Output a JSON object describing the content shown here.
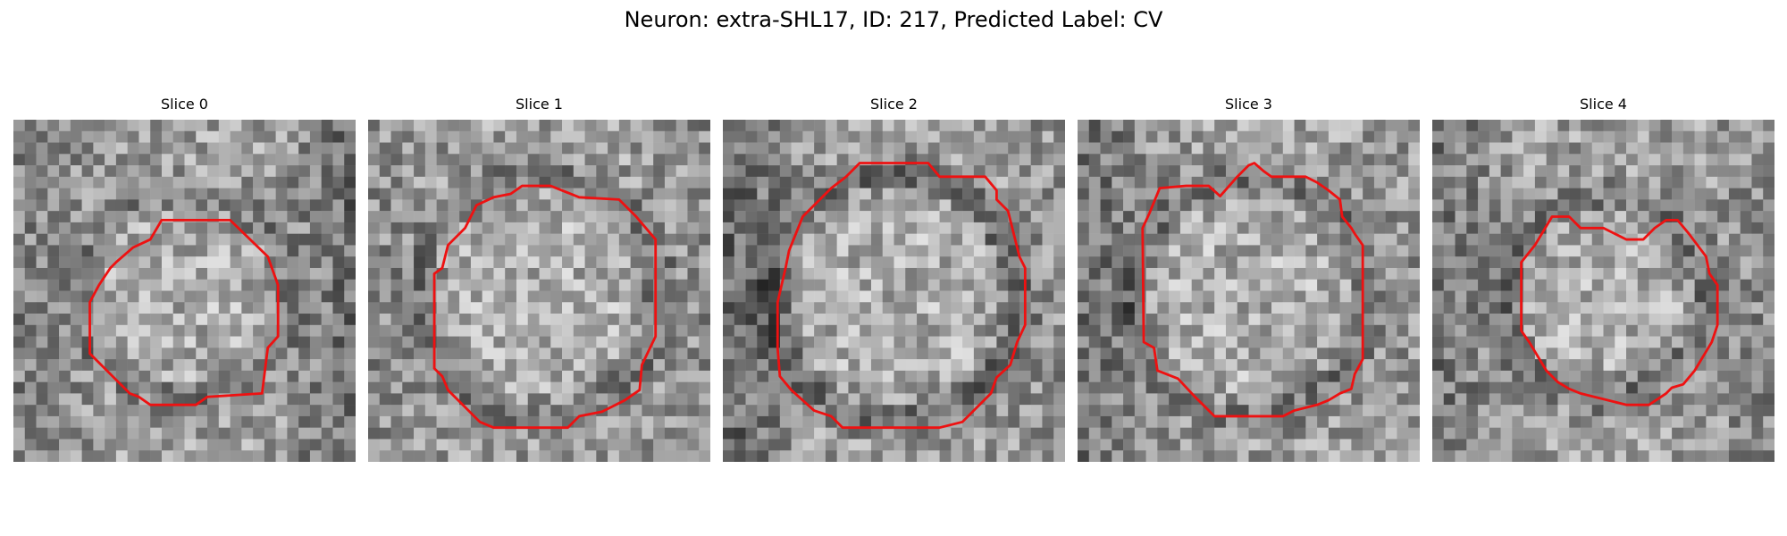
{
  "figure": {
    "title": "Neuron: extra-SHL17, ID: 217, Predicted Label: CV"
  },
  "slices": [
    {
      "label": "Slice 0",
      "radius": 0.3,
      "ring": 0.4,
      "darkLeft": 0.5,
      "darkRight": 1.0
    },
    {
      "label": "Slice 1",
      "radius": 0.35,
      "ring": 0.5,
      "darkLeft": 0.3,
      "darkRight": 0.3
    },
    {
      "label": "Slice 2",
      "radius": 0.36,
      "ring": 0.6,
      "darkLeft": 1.0,
      "darkRight": 0.3
    },
    {
      "label": "Slice 3",
      "radius": 0.35,
      "ring": 0.5,
      "darkLeft": 0.8,
      "darkRight": 0.2
    },
    {
      "label": "Slice 4",
      "radius": 0.29,
      "ring": 0.5,
      "darkLeft": 0.7,
      "darkRight": 0.4
    }
  ],
  "contour_color": "#ee1111"
}
